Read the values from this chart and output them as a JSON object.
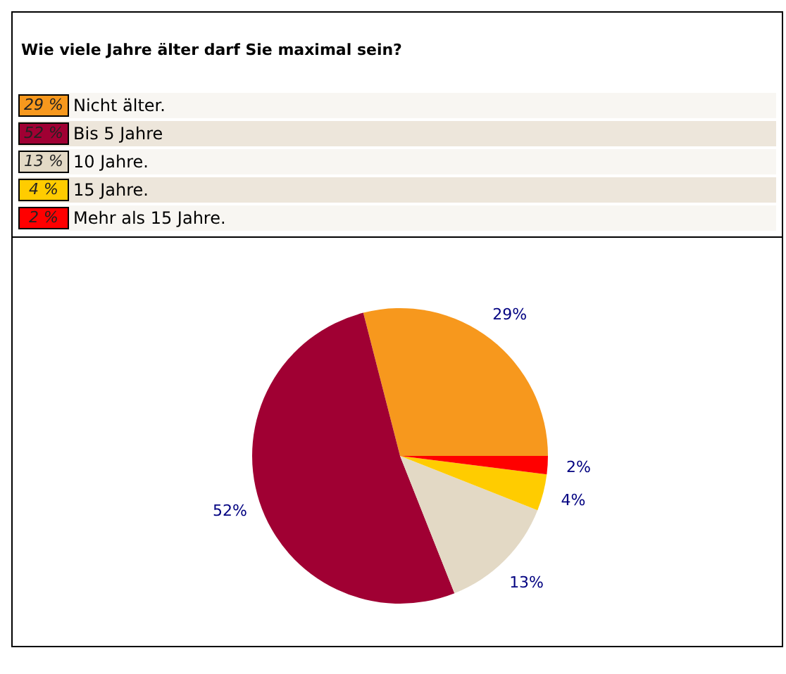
{
  "chart_data": {
    "type": "pie",
    "title": "Wie viele Jahre älter darf Sie maximal sein?",
    "categories": [
      "Nicht älter.",
      "Bis 5 Jahre",
      "10 Jahre.",
      "15 Jahre.",
      "Mehr als 15 Jahre."
    ],
    "values": [
      29,
      52,
      13,
      4,
      2
    ],
    "colors": [
      "#f7981d",
      "#a00033",
      "#e3d9c5",
      "#ffcc00",
      "#ff0000"
    ],
    "value_labels": [
      "29%",
      "52%",
      "13%",
      "4%",
      "2%"
    ],
    "annotations": [
      "29 %",
      "52 %",
      "13 %",
      "4 %",
      "2 %"
    ],
    "legend": "top"
  }
}
